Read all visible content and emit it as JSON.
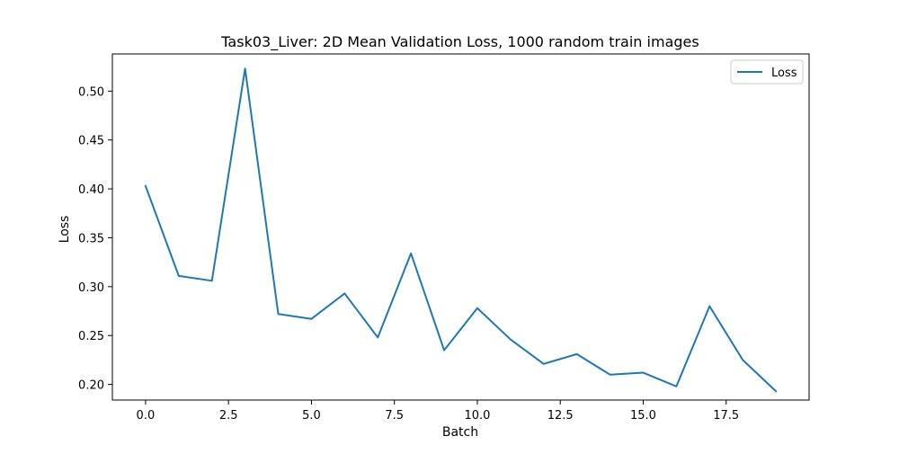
{
  "chart_data": {
    "type": "line",
    "title": "Task03_Liver: 2D Mean Validation Loss, 1000 random train images",
    "xlabel": "Batch",
    "ylabel": "Loss",
    "xlim": [
      -1.0,
      20.0
    ],
    "ylim": [
      0.184,
      0.538
    ],
    "xticks": [
      0.0,
      2.5,
      5.0,
      7.5,
      10.0,
      12.5,
      15.0,
      17.5
    ],
    "xtick_labels": [
      "0.0",
      "2.5",
      "5.0",
      "7.5",
      "10.0",
      "12.5",
      "15.0",
      "17.5"
    ],
    "yticks": [
      0.2,
      0.25,
      0.3,
      0.35,
      0.4,
      0.45,
      0.5
    ],
    "ytick_labels": [
      "0.20",
      "0.25",
      "0.30",
      "0.35",
      "0.40",
      "0.45",
      "0.50"
    ],
    "grid": false,
    "legend_position": "top-right",
    "series": [
      {
        "name": "Loss",
        "color": "#1f77b4",
        "x": [
          0,
          1,
          2,
          3,
          4,
          5,
          6,
          7,
          8,
          9,
          10,
          11,
          12,
          13,
          14,
          15,
          16,
          17,
          18,
          19
        ],
        "y": [
          0.403,
          0.311,
          0.306,
          0.523,
          0.272,
          0.267,
          0.293,
          0.248,
          0.334,
          0.235,
          0.278,
          0.246,
          0.221,
          0.231,
          0.21,
          0.212,
          0.198,
          0.28,
          0.225,
          0.193
        ]
      }
    ]
  }
}
